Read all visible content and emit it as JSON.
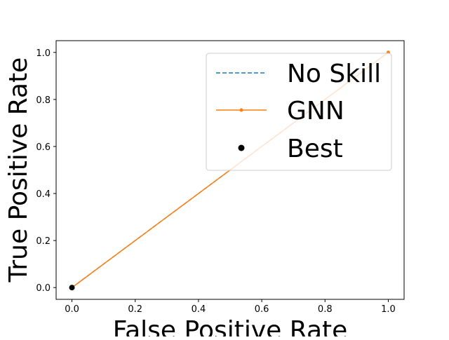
{
  "chart_data": {
    "type": "line",
    "title": "",
    "xlabel": "False Positive Rate",
    "ylabel": "True Positive Rate",
    "xlim": [
      -0.05,
      1.05
    ],
    "ylim": [
      -0.05,
      1.05
    ],
    "x_ticks": [
      0.0,
      0.2,
      0.4,
      0.6,
      0.8,
      1.0
    ],
    "x_tick_labels": [
      "0.0",
      "0.2",
      "0.4",
      "0.6",
      "0.8",
      "1.0"
    ],
    "y_ticks": [
      0.0,
      0.2,
      0.4,
      0.6,
      0.8,
      1.0
    ],
    "y_tick_labels": [
      "0.0",
      "0.2",
      "0.4",
      "0.6",
      "0.8",
      "1.0"
    ],
    "grid": false,
    "legend_position": "top-right",
    "series": [
      {
        "name": "No Skill",
        "style": "dashed",
        "color": "#1f77b4",
        "x": [
          0,
          1
        ],
        "y": [
          0,
          1
        ]
      },
      {
        "name": "GNN",
        "style": "solid-marker",
        "color": "#ff7f0e",
        "x": [
          0,
          0,
          1
        ],
        "y": [
          0,
          0,
          1
        ]
      },
      {
        "name": "Best",
        "style": "point",
        "color": "#000000",
        "x": [
          0
        ],
        "y": [
          0
        ]
      }
    ]
  }
}
